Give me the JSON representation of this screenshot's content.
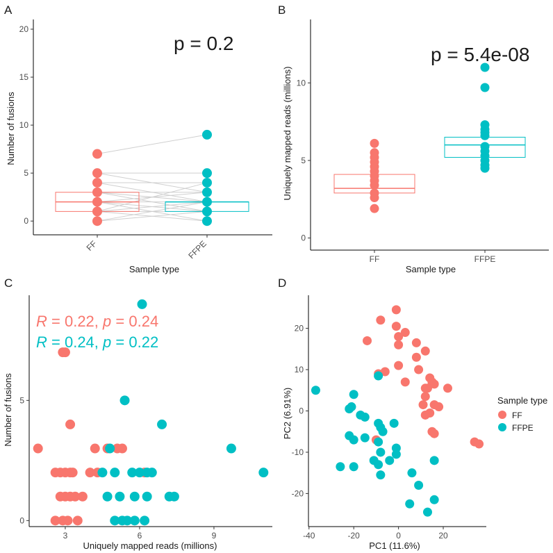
{
  "figure": {
    "colors": {
      "FF": "#F8766D",
      "FFPE": "#00BFC4",
      "pair_line": "#cfcfcf"
    }
  },
  "chart_data": [
    {
      "panel": "A",
      "type": "box-paired",
      "xlabel": "Sample type",
      "ylabel": "Number of fusions",
      "categories": [
        "FF",
        "FFPE"
      ],
      "ylim": [
        0,
        20
      ],
      "yticks": [
        0,
        5,
        10,
        15,
        20
      ],
      "annotation": "p = 0.2",
      "boxes": [
        {
          "name": "FF",
          "q1": 1,
          "median": 2,
          "q3": 3
        },
        {
          "name": "FFPE",
          "q1": 1,
          "median": 2,
          "q3": 2
        }
      ],
      "points": {
        "FF": [
          0,
          1,
          2,
          3,
          4,
          5,
          7
        ],
        "FFPE": [
          0,
          1,
          2,
          3,
          4,
          5,
          9
        ]
      },
      "pairs": [
        [
          7,
          9
        ],
        [
          5,
          5
        ],
        [
          5,
          3
        ],
        [
          4,
          2
        ],
        [
          4,
          4
        ],
        [
          3,
          1
        ],
        [
          3,
          2
        ],
        [
          2,
          0
        ],
        [
          2,
          3
        ],
        [
          2,
          1
        ],
        [
          1,
          2
        ],
        [
          1,
          0
        ],
        [
          1,
          4
        ],
        [
          0,
          1
        ],
        [
          0,
          2
        ],
        [
          2,
          2
        ],
        [
          3,
          3
        ],
        [
          1,
          1
        ]
      ]
    },
    {
      "panel": "B",
      "type": "box",
      "xlabel": "Sample type",
      "ylabel": "Uniquely mapped reads (millions)",
      "categories": [
        "FF",
        "FFPE"
      ],
      "ylim": [
        0,
        14
      ],
      "yticks": [
        0,
        5,
        10
      ],
      "annotation": "p = 5.4e-08",
      "boxes": [
        {
          "name": "FF",
          "q1": 2.9,
          "median": 3.2,
          "q3": 4.1
        },
        {
          "name": "FFPE",
          "q1": 5.2,
          "median": 6.0,
          "q3": 6.5
        }
      ],
      "points": {
        "FF": [
          6.1,
          5.5,
          5.2,
          4.9,
          4.6,
          4.3,
          4.0,
          3.7,
          3.4,
          2.9,
          2.6,
          1.9
        ],
        "FFPE": [
          11.0,
          9.7,
          7.3,
          7.0,
          6.8,
          6.6,
          5.9,
          5.6,
          5.3,
          5.0,
          4.7,
          4.5
        ]
      }
    },
    {
      "panel": "C",
      "type": "scatter",
      "xlabel": "Uniquely mapped reads (millions)",
      "ylabel": "Number of fusions",
      "xlim": [
        1.6,
        11.3
      ],
      "ylim": [
        -0.25,
        9.2
      ],
      "xticks": [
        3,
        6,
        9
      ],
      "yticks": [
        0,
        5
      ],
      "stats": [
        {
          "group": "FF",
          "R": "0.22",
          "p": "0.24"
        },
        {
          "group": "FFPE",
          "R": "0.24",
          "p": "0.22"
        }
      ],
      "series": [
        {
          "name": "FF",
          "points": [
            [
              1.9,
              3
            ],
            [
              2.6,
              2
            ],
            [
              2.8,
              2
            ],
            [
              3.0,
              2
            ],
            [
              3.2,
              2
            ],
            [
              3.3,
              2
            ],
            [
              2.8,
              1
            ],
            [
              3.0,
              1
            ],
            [
              3.2,
              1
            ],
            [
              3.4,
              1
            ],
            [
              3.7,
              1
            ],
            [
              2.6,
              0
            ],
            [
              2.9,
              0
            ],
            [
              3.1,
              0
            ],
            [
              3.5,
              0
            ],
            [
              3.0,
              7
            ],
            [
              2.9,
              7
            ],
            [
              3.2,
              4
            ],
            [
              4.2,
              3
            ],
            [
              4.0,
              2
            ],
            [
              4.3,
              2
            ],
            [
              4.7,
              3
            ],
            [
              5.1,
              3
            ],
            [
              5.3,
              3
            ],
            [
              6.2,
              2
            ]
          ]
        },
        {
          "name": "FFPE",
          "points": [
            [
              6.1,
              9
            ],
            [
              5.4,
              5
            ],
            [
              6.9,
              4
            ],
            [
              9.7,
              3
            ],
            [
              11.0,
              2
            ],
            [
              4.8,
              3
            ],
            [
              4.5,
              2
            ],
            [
              5.0,
              2
            ],
            [
              5.7,
              2
            ],
            [
              6.0,
              2
            ],
            [
              6.3,
              2
            ],
            [
              6.5,
              2
            ],
            [
              7.2,
              1
            ],
            [
              7.4,
              1
            ],
            [
              4.7,
              1
            ],
            [
              5.2,
              1
            ],
            [
              5.8,
              1
            ],
            [
              6.3,
              1
            ],
            [
              5.0,
              0
            ],
            [
              5.3,
              0
            ],
            [
              5.5,
              0
            ],
            [
              5.8,
              0
            ],
            [
              6.2,
              0
            ]
          ]
        }
      ]
    },
    {
      "panel": "D",
      "type": "scatter",
      "xlabel": "PC1 (11.6%)",
      "ylabel": "PC2 (6.91%)",
      "xlim": [
        -39,
        38
      ],
      "ylim": [
        -27,
        27
      ],
      "xticks": [
        -40,
        -20,
        0,
        20
      ],
      "yticks": [
        -20,
        -10,
        0,
        10,
        20
      ],
      "legend": {
        "title": "Sample type",
        "position": "right",
        "entries": [
          "FF",
          "FFPE"
        ]
      },
      "series": [
        {
          "name": "FF",
          "points": [
            [
              -1,
              24.5
            ],
            [
              -8,
              22
            ],
            [
              -1,
              20.5
            ],
            [
              3,
              19
            ],
            [
              0,
              18
            ],
            [
              -14,
              17
            ],
            [
              8,
              16.5
            ],
            [
              0,
              16
            ],
            [
              12,
              14.5
            ],
            [
              8,
              13
            ],
            [
              -6,
              9.5
            ],
            [
              -9,
              9
            ],
            [
              14,
              8
            ],
            [
              15,
              7
            ],
            [
              16,
              6.5
            ],
            [
              3,
              7
            ],
            [
              12,
              5.5
            ],
            [
              13,
              5.5
            ],
            [
              22,
              5.5
            ],
            [
              12,
              3.5
            ],
            [
              11,
              1.5
            ],
            [
              16,
              1.5
            ],
            [
              18,
              1
            ],
            [
              14,
              -0.5
            ],
            [
              12,
              -1
            ],
            [
              15,
              -5
            ],
            [
              16,
              -5.5
            ],
            [
              -10,
              -7
            ],
            [
              34,
              -7.5
            ],
            [
              36,
              -8
            ],
            [
              0,
              11
            ],
            [
              9,
              10
            ]
          ]
        },
        {
          "name": "FFPE",
          "points": [
            [
              -37,
              5
            ],
            [
              -20,
              4
            ],
            [
              -9,
              8.5
            ],
            [
              -21,
              1
            ],
            [
              -22,
              0.5
            ],
            [
              -17,
              -1
            ],
            [
              -15,
              -1.5
            ],
            [
              -9,
              -3
            ],
            [
              -8,
              -4
            ],
            [
              -2,
              -3
            ],
            [
              -7,
              -5
            ],
            [
              -22,
              -6
            ],
            [
              -20,
              -7
            ],
            [
              -15,
              -6.5
            ],
            [
              -9,
              -7.5
            ],
            [
              -1,
              -9
            ],
            [
              -1,
              -10.5
            ],
            [
              -8,
              -10
            ],
            [
              -11,
              -12
            ],
            [
              -4,
              -12
            ],
            [
              16,
              -12
            ],
            [
              -9,
              -13
            ],
            [
              -26,
              -13.5
            ],
            [
              -20,
              -13.5
            ],
            [
              -8,
              -15.5
            ],
            [
              6,
              -15
            ],
            [
              9,
              -18
            ],
            [
              16,
              -21.5
            ],
            [
              5,
              -22.5
            ],
            [
              13,
              -24.5
            ]
          ]
        }
      ]
    }
  ]
}
